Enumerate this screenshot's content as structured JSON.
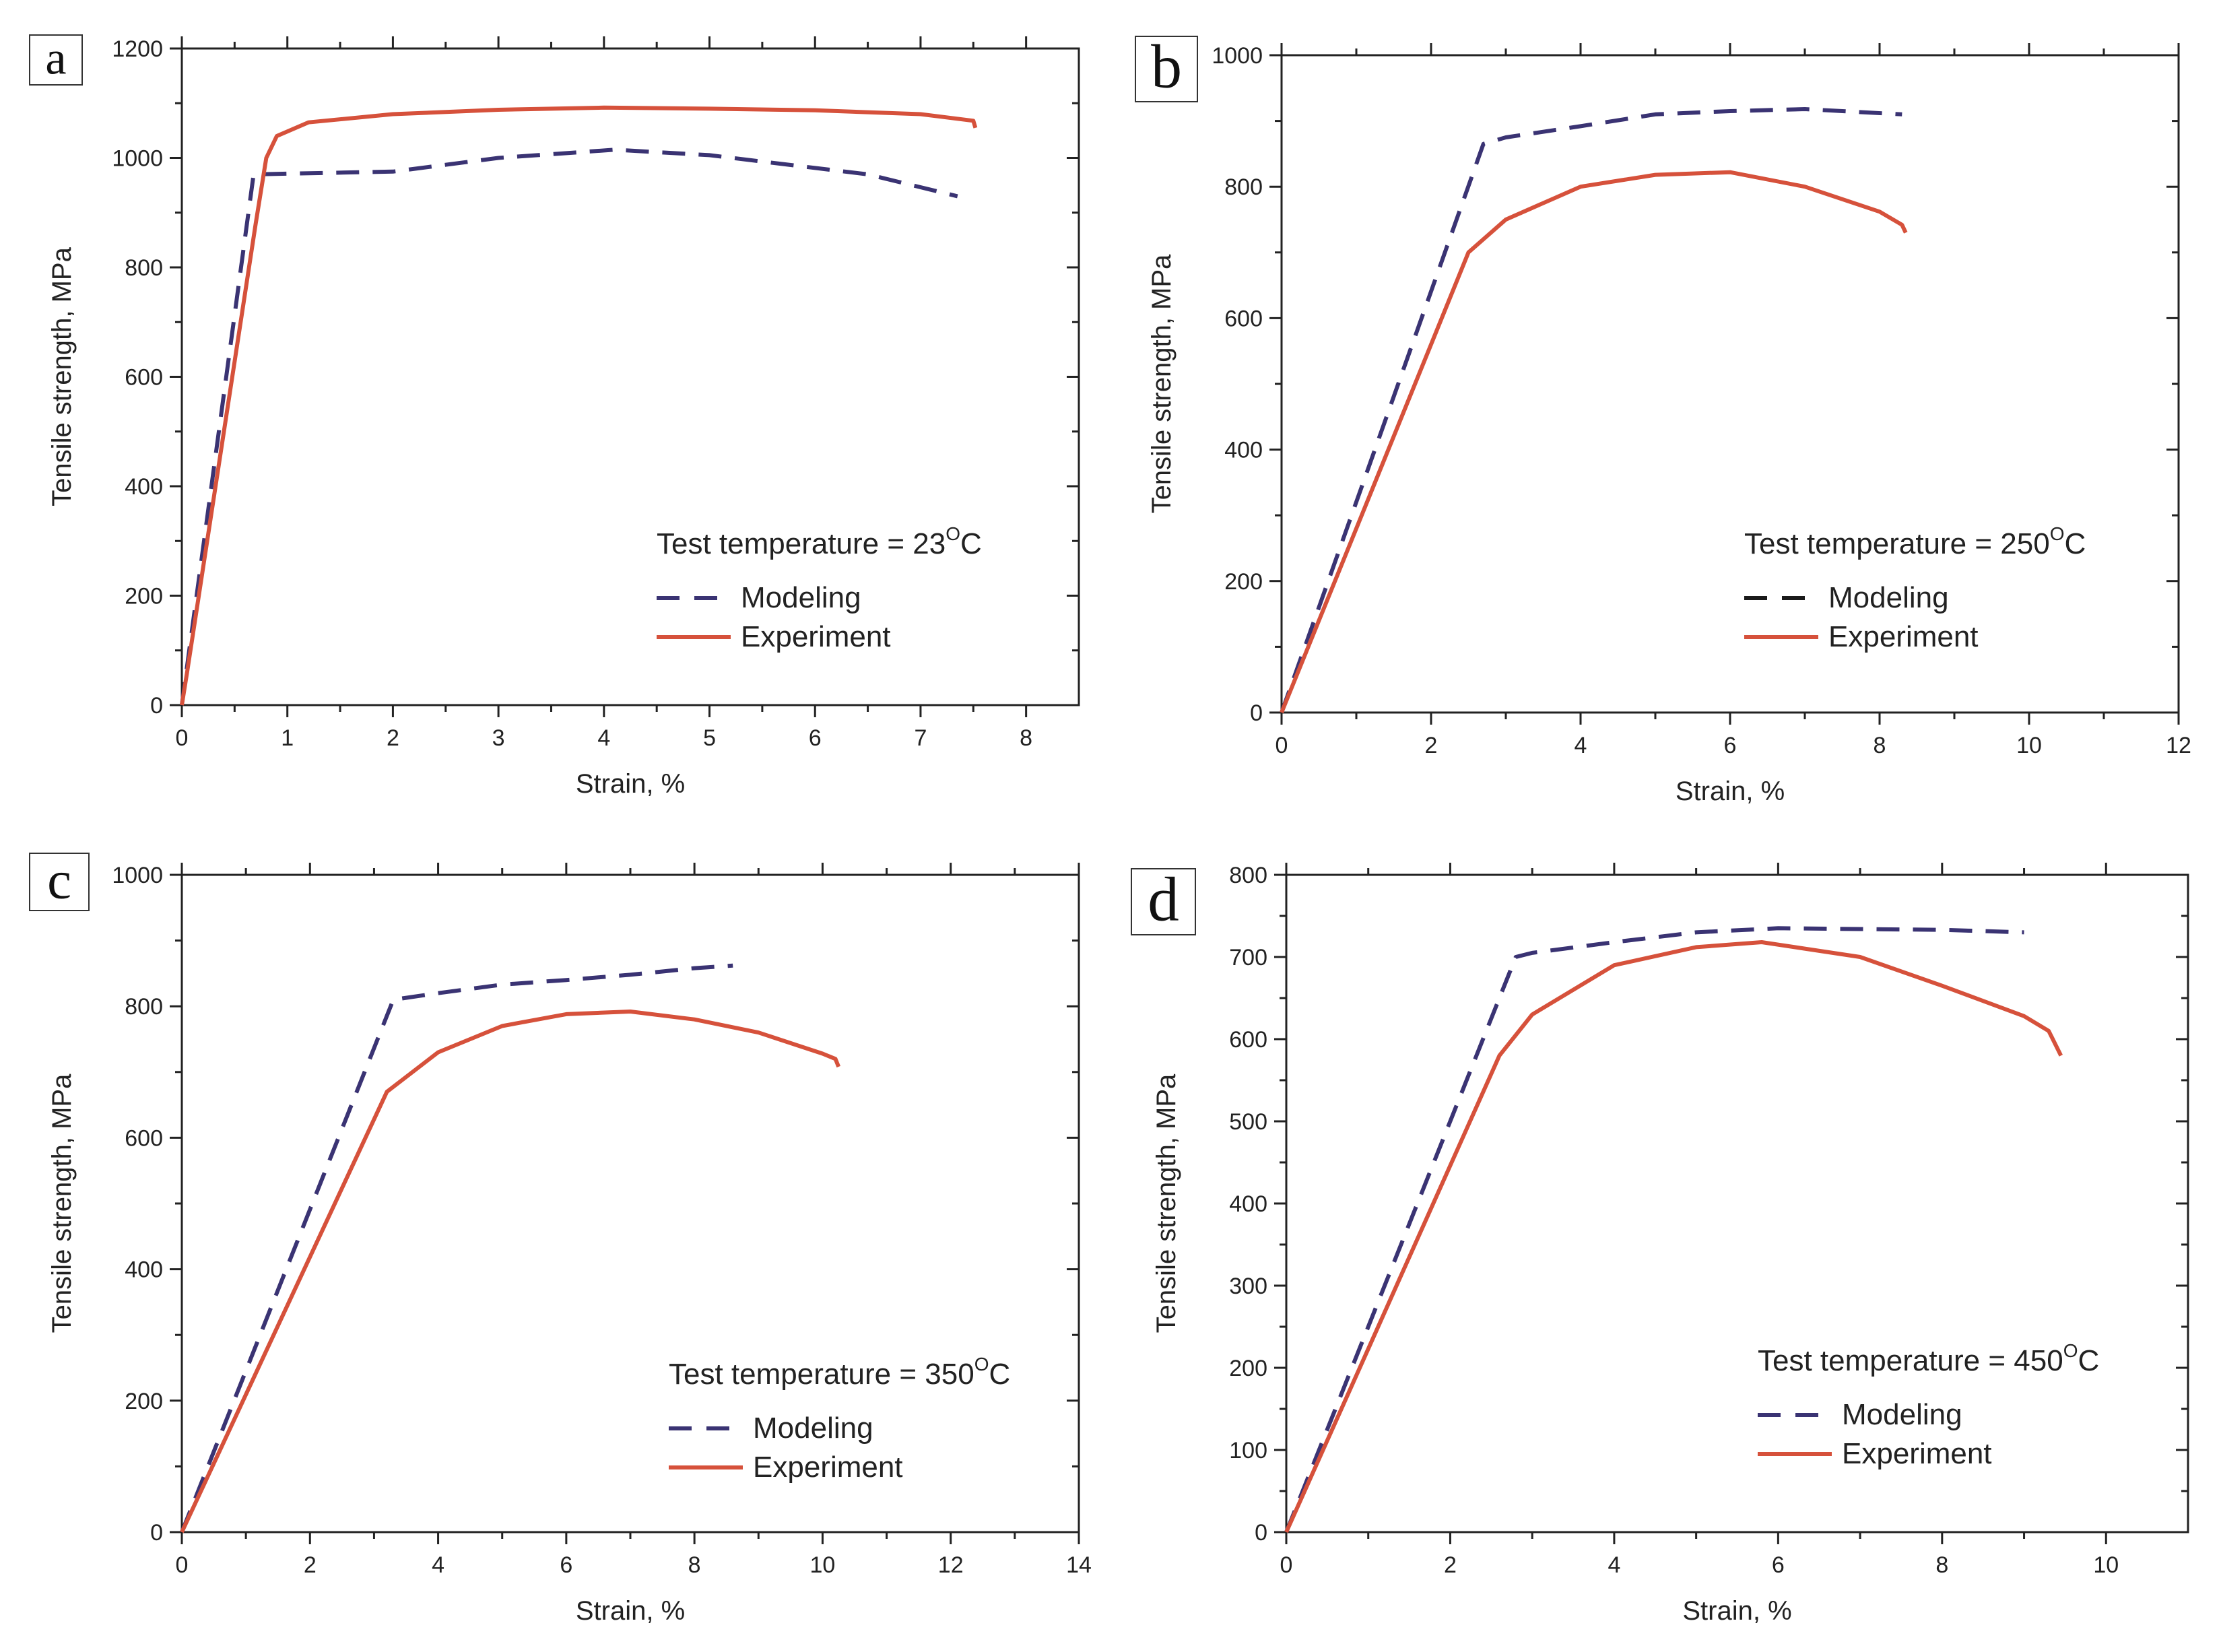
{
  "chart_data": [
    {
      "type": "line",
      "panel_label": "a",
      "xlabel": "Strain, %",
      "ylabel": "Tensile strength, MPa",
      "xlim": [
        0,
        8.5
      ],
      "ylim": [
        0,
        1200
      ],
      "xticks": [
        0,
        1,
        2,
        3,
        4,
        5,
        6,
        7,
        8
      ],
      "yticks": [
        0,
        200,
        400,
        600,
        800,
        1000,
        1200
      ],
      "legend_title_prefix": "Test temperature = 23",
      "legend_title_sup": "O",
      "legend_title_suffix": "C",
      "legend_position": "bottom-right",
      "series": [
        {
          "name": "Modeling",
          "color": "#3a3373",
          "style": "dashed",
          "points": [
            [
              0,
              0
            ],
            [
              0.68,
              970
            ],
            [
              2,
              975
            ],
            [
              3,
              1000
            ],
            [
              4.1,
              1015
            ],
            [
              5,
              1005
            ],
            [
              6.5,
              970
            ],
            [
              7.35,
              930
            ]
          ]
        },
        {
          "name": "Experiment",
          "color": "#d6513b",
          "style": "solid",
          "points": [
            [
              0,
              0
            ],
            [
              0.05,
              60
            ],
            [
              0.7,
              880
            ],
            [
              0.8,
              1000
            ],
            [
              0.9,
              1040
            ],
            [
              1.2,
              1065
            ],
            [
              2,
              1080
            ],
            [
              3,
              1088
            ],
            [
              4,
              1092
            ],
            [
              5,
              1090
            ],
            [
              6,
              1087
            ],
            [
              7,
              1080
            ],
            [
              7.5,
              1068
            ],
            [
              7.52,
              1055
            ]
          ]
        }
      ]
    },
    {
      "type": "line",
      "panel_label": "b",
      "xlabel": "Strain, %",
      "ylabel": "Tensile strength, MPa",
      "xlim": [
        0,
        12
      ],
      "ylim": [
        0,
        1000
      ],
      "xticks": [
        0,
        2,
        4,
        6,
        8,
        10,
        12
      ],
      "yticks": [
        0,
        200,
        400,
        600,
        800,
        1000
      ],
      "legend_title_prefix": "Test temperature = 250",
      "legend_title_sup": "O",
      "legend_title_suffix": "C",
      "legend_position": "bottom-right",
      "series": [
        {
          "name": "Modeling",
          "color": "#3a3373",
          "legend_color": "#1a1a1a",
          "style": "dashed",
          "points": [
            [
              0,
              0
            ],
            [
              2.7,
              865
            ],
            [
              3,
              875
            ],
            [
              4,
              892
            ],
            [
              5,
              910
            ],
            [
              6,
              915
            ],
            [
              7,
              918
            ],
            [
              8.3,
              910
            ]
          ]
        },
        {
          "name": "Experiment",
          "color": "#d6513b",
          "style": "solid",
          "points": [
            [
              0,
              0
            ],
            [
              2.5,
              700
            ],
            [
              3,
              750
            ],
            [
              4,
              800
            ],
            [
              5,
              818
            ],
            [
              6,
              822
            ],
            [
              7,
              800
            ],
            [
              8,
              762
            ],
            [
              8.3,
              742
            ],
            [
              8.35,
              730
            ]
          ]
        }
      ]
    },
    {
      "type": "line",
      "panel_label": "c",
      "xlabel": "Strain, %",
      "ylabel": "Tensile strength, MPa",
      "xlim": [
        0,
        14
      ],
      "ylim": [
        0,
        1000
      ],
      "xticks": [
        0,
        2,
        4,
        6,
        8,
        10,
        12,
        14
      ],
      "yticks": [
        0,
        200,
        400,
        600,
        800,
        1000
      ],
      "legend_title_prefix": "Test temperature = 350",
      "legend_title_sup": "O",
      "legend_title_suffix": "C",
      "legend_position": "bottom-right",
      "series": [
        {
          "name": "Modeling",
          "color": "#3a3373",
          "style": "dashed",
          "points": [
            [
              0,
              0
            ],
            [
              3.3,
              810
            ],
            [
              4,
              820
            ],
            [
              5,
              833
            ],
            [
              6,
              840
            ],
            [
              7,
              848
            ],
            [
              8,
              858
            ],
            [
              8.6,
              862
            ]
          ]
        },
        {
          "name": "Experiment",
          "color": "#d6513b",
          "style": "solid",
          "points": [
            [
              0,
              0
            ],
            [
              3.2,
              670
            ],
            [
              4,
              730
            ],
            [
              5,
              770
            ],
            [
              6,
              788
            ],
            [
              7,
              792
            ],
            [
              8,
              780
            ],
            [
              9,
              760
            ],
            [
              10,
              728
            ],
            [
              10.2,
              720
            ],
            [
              10.25,
              708
            ]
          ]
        }
      ]
    },
    {
      "type": "line",
      "panel_label": "d",
      "xlabel": "Strain, %",
      "ylabel": "Tensile strength, MPa",
      "xlim": [
        0,
        11
      ],
      "ylim": [
        0,
        800
      ],
      "xticks": [
        0,
        2,
        4,
        6,
        8,
        10
      ],
      "yticks": [
        0,
        100,
        200,
        300,
        400,
        500,
        600,
        700,
        800
      ],
      "legend_title_prefix": "Test temperature = 450",
      "legend_title_sup": "O",
      "legend_title_suffix": "C",
      "legend_position": "bottom-right",
      "series": [
        {
          "name": "Modeling",
          "color": "#3a3373",
          "style": "dashed",
          "points": [
            [
              0,
              0
            ],
            [
              2.8,
              700
            ],
            [
              3,
              705
            ],
            [
              4,
              718
            ],
            [
              5,
              730
            ],
            [
              6,
              735
            ],
            [
              7,
              734
            ],
            [
              8,
              733
            ],
            [
              9,
              730
            ]
          ]
        },
        {
          "name": "Experiment",
          "color": "#d6513b",
          "style": "solid",
          "points": [
            [
              0,
              0
            ],
            [
              2.6,
              580
            ],
            [
              3,
              630
            ],
            [
              4,
              690
            ],
            [
              5,
              712
            ],
            [
              5.8,
              718
            ],
            [
              7,
              700
            ],
            [
              8,
              665
            ],
            [
              9,
              628
            ],
            [
              9.3,
              610
            ],
            [
              9.45,
              580
            ]
          ]
        }
      ]
    }
  ]
}
